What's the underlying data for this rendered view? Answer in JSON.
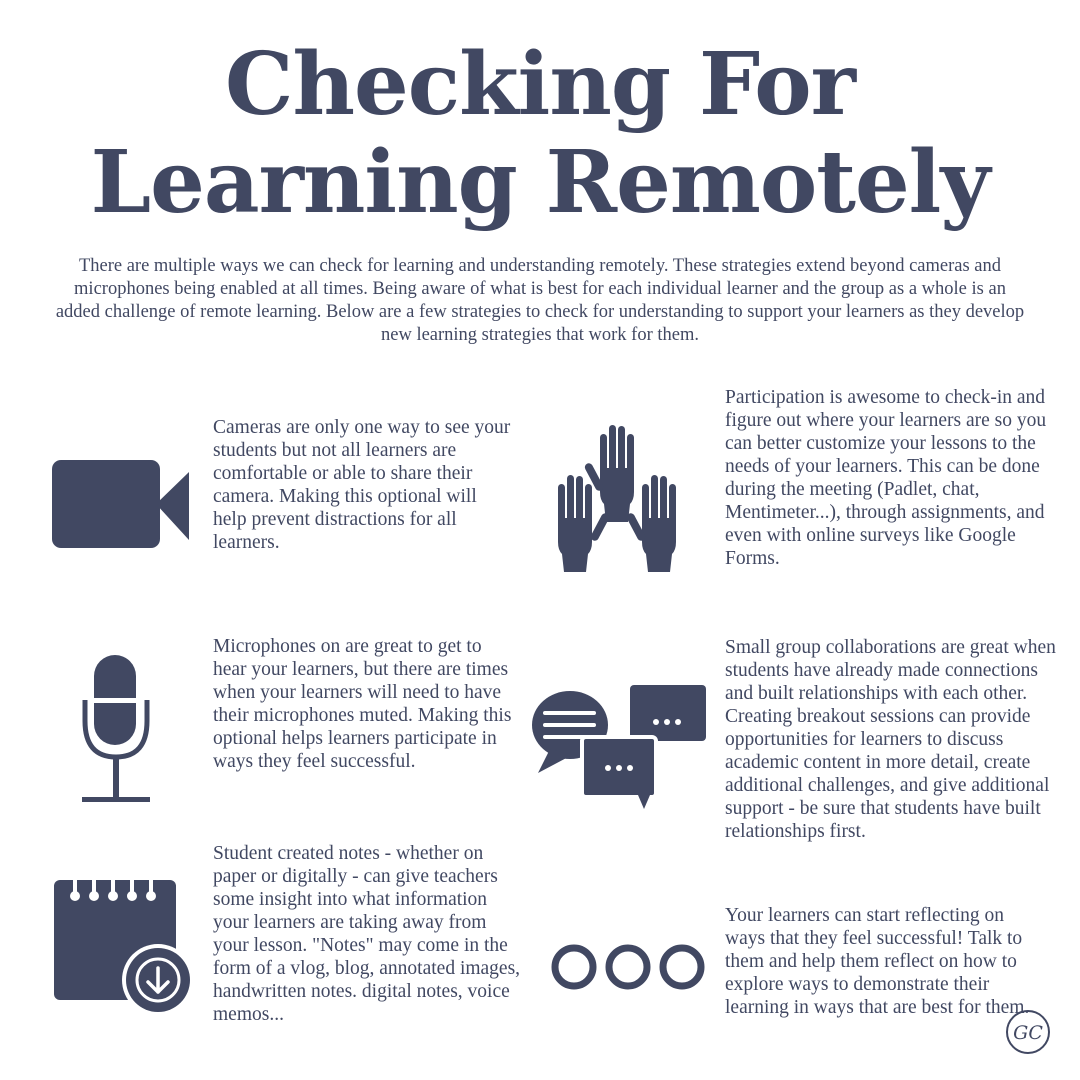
{
  "title": {
    "line1": "Checking For",
    "line2": "Learning Remotely"
  },
  "intro": "There are multiple ways we can check for learning and understanding remotely. These strategies extend beyond cameras and microphones being enabled at all times. Being aware of what is best for each individual learner and the group as a whole is an added challenge of remote learning. Below are a few strategies to check for understanding to support your learners as they develop new learning strategies that work for them.",
  "strategies": {
    "cameras": "Cameras are only one way to see your students but not all learners are comfortable or able to share their camera. Making this optional will help prevent distractions for all learners.",
    "participation": "Participation is awesome to check-in and figure out where your learners are so you can better customize your lessons to the needs of your learners. This can be done during the meeting (Padlet, chat, Mentimeter...), through assignments, and even with online surveys like Google Forms.",
    "microphones": "Microphones on are great to get to hear your learners, but there are times when your learners will need to have their microphones muted. Making this optional helps learners participate in ways they feel successful.",
    "groups": "Small group collaborations are great when students have already made connections and built relationships with each other. Creating breakout sessions can provide opportunities for learners to discuss academic content in more detail, create additional challenges, and give additional support - be sure that students have built relationships first.",
    "notes": "Student created notes - whether on paper or digitally - can give teachers some insight into what information your learners are taking away from your lesson. \"Notes\" may come in the form of a vlog, blog, annotated images, handwritten notes. digital notes, voice memos...",
    "reflect": "Your learners can start reflecting on ways that they feel successful! Talk to them and help them reflect on how to explore ways to demonstrate their learning in ways that are best for them."
  },
  "logo": "GC",
  "icons": {
    "camera": "video-camera-icon",
    "hands": "raised-hands-icon",
    "mic": "microphone-icon",
    "chat": "chat-bubbles-icon",
    "notes": "notepad-download-icon",
    "circles": "three-circles-icon"
  },
  "colors": {
    "primary": "#414862",
    "background": "#ffffff"
  }
}
